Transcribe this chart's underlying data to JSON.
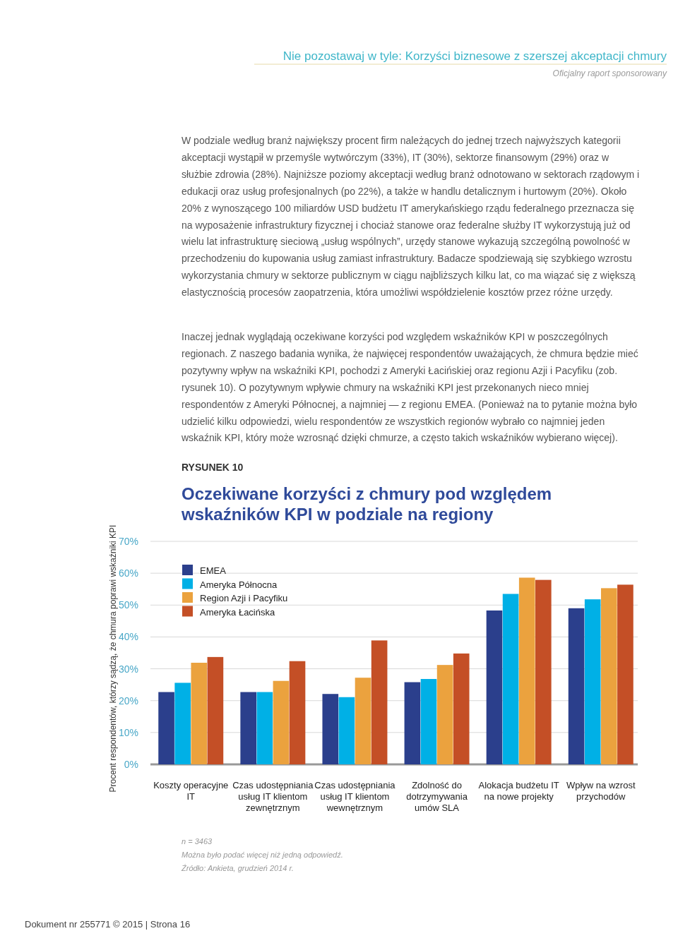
{
  "chart_data": {
    "type": "bar",
    "title": "Oczekiwane korzyści z chmury pod względem wskaźników KPI w podziale na regiony",
    "ylabel": "Procent respondentów, którzy sądzą, że chmura poprawi wskaźniki KPI",
    "categories": [
      "Koszty operacyjne IT",
      "Czas udostępniania usług IT klientom zewnętrznym",
      "Czas udostępniania usług IT klientom wewnętrznym",
      "Zdolność do dotrzymywania umów SLA",
      "Alokacja budżetu IT na nowe projekty",
      "Wpływ na wzrost przychodów"
    ],
    "series": [
      {
        "name": "EMEA",
        "color": "#2b3f8c",
        "values": [
          22.7,
          22.7,
          22.1,
          25.8,
          48.3,
          49.0
        ]
      },
      {
        "name": "Ameryka Północna",
        "color": "#00b0e6",
        "values": [
          25.6,
          22.7,
          21.1,
          26.8,
          53.5,
          51.8
        ]
      },
      {
        "name": "Region Azji i Pacyfiku",
        "color": "#eba23e",
        "values": [
          31.9,
          26.2,
          27.2,
          31.2,
          58.6,
          55.3
        ]
      },
      {
        "name": "Ameryka Łacińska",
        "color": "#c44f26",
        "values": [
          33.7,
          32.4,
          38.9,
          34.8,
          57.9,
          56.4
        ]
      }
    ],
    "ylim": [
      0,
      70
    ],
    "yticks": [
      {
        "value": 0,
        "label": "0%"
      },
      {
        "value": 10,
        "label": "10%"
      },
      {
        "value": 20,
        "label": "20%"
      },
      {
        "value": 30,
        "label": "30%"
      },
      {
        "value": 40,
        "label": "40%"
      },
      {
        "value": 50,
        "label": "50%"
      },
      {
        "value": 60,
        "label": "60%"
      },
      {
        "value": 70,
        "label": "70%"
      }
    ],
    "grid": "y",
    "legend": "top left",
    "annotations": [
      "Nie pozostawaj w tyle: Korzyści biznesowe z szerszej akceptacji chmury",
      "Oficjalny raport sponsorowany",
      "W podziale według branż największy procent firm należących do jednej trzech najwyższych kategorii akceptacji wystąpił w przemyśle wytwórczym (33%), IT (30%), sektorze finansowym (29%) oraz w służbie zdrowia (28%). Najniższe poziomy akceptacji według branż odnotowano w sektorach rządowym i edukacji oraz usług profesjonalnych (po 22%), a także w handlu detalicznym i hurtowym (20%). Około 20% z wynoszącego 100 miliardów USD budżetu IT amerykańskiego rządu federalnego przeznacza się na wyposażenie infrastruktury fizycznej i chociaż stanowe oraz federalne służby IT wykorzystują już od wielu lat infrastrukturę sieciową „usług wspólnych”, urzędy stanowe wykazują szczególną powolność w przechodzeniu do kupowania usług zamiast infrastruktury. Badacze spodziewają się szybkiego wzrostu wykorzystania chmury w sektorze publicznym w ciągu najbliższych kilku lat, co ma wiązać się z większą elastycznością procesów zaopatrzenia, która umożliwi współdzielenie kosztów przez różne urzędy.",
      "Inaczej jednak wyglądają oczekiwane korzyści pod względem wskaźników KPI w poszczególnych regionach. Z naszego badania wynika, że najwięcej respondentów uważających, że chmura będzie mieć pozytywny wpływ na wskaźniki KPI, pochodzi z Ameryki Łacińskiej oraz regionu Azji i Pacyfiku (zob. rysunek 10). O pozytywnym wpływie chmury na wskaźniki KPI jest przekonanych nieco mniej respondentów z Ameryki Północnej, a najmniej — z regionu EMEA. (Ponieważ na to pytanie można było udzielić kilku odpowiedzi, wielu respondentów ze wszystkich regionów wybrało co najmniej jeden wskaźnik KPI, który może wzrosnąć dzięki chmurze, a często takich wskaźników wybierano więcej).",
      "RYSUNEK 10",
      "n = 3463",
      "Można było podać więcej niż jedną odpowiedź.",
      "Źródło: Ankieta, grudzień 2014 r.",
      "Dokument nr 255771 © 2015 | Strona 16"
    ]
  }
}
